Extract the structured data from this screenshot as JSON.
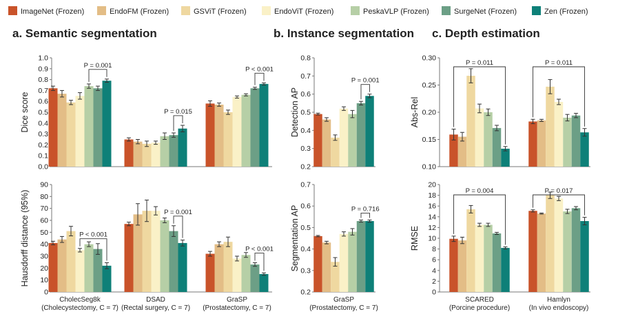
{
  "legend": [
    {
      "name": "ImageNet (Frozen)",
      "color": "#c9532a"
    },
    {
      "name": "EndoFM (Frozen)",
      "color": "#e3bd86"
    },
    {
      "name": "GSViT (Frozen)",
      "color": "#efd8a0"
    },
    {
      "name": "EndoViT (Frozen)",
      "color": "#faf1c7"
    },
    {
      "name": "PeskaVLP (Frozen)",
      "color": "#b6cfa6"
    },
    {
      "name": "SurgeNet (Frozen)",
      "color": "#6c9f86"
    },
    {
      "name": "Zen (Frozen)",
      "color": "#0e8078"
    }
  ],
  "sections": {
    "a": "a.  Semantic segmentation",
    "b": "b.  Instance segmentation",
    "c": "c.  Depth estimation"
  },
  "chart_data": [
    {
      "id": "dice",
      "type": "bar",
      "ylabel": "Dice score",
      "ylim": [
        0,
        1.0
      ],
      "yticks": [
        "0.0",
        "0.1",
        "0.2",
        "0.3",
        "0.4",
        "0.5",
        "0.6",
        "0.7",
        "0.8",
        "0.9",
        "1.0"
      ],
      "groups": [
        {
          "label": "CholecSeg8k",
          "sublabel": "(Cholecystectomy, C = 7)",
          "values": [
            0.72,
            0.67,
            0.59,
            0.65,
            0.74,
            0.72,
            0.79
          ],
          "errors": [
            0.02,
            0.03,
            0.02,
            0.03,
            0.02,
            0.02,
            0.015
          ]
        },
        {
          "label": "DSAD",
          "sublabel": "(Rectal surgery, C = 7)",
          "values": [
            0.25,
            0.23,
            0.21,
            0.22,
            0.28,
            0.29,
            0.35
          ],
          "errors": [
            0.015,
            0.02,
            0.025,
            0.015,
            0.03,
            0.02,
            0.03
          ]
        },
        {
          "label": "GraSP",
          "sublabel": "(Prostatectomy, C = 7)",
          "values": [
            0.58,
            0.57,
            0.5,
            0.64,
            0.66,
            0.72,
            0.76
          ],
          "errors": [
            0.025,
            0.015,
            0.02,
            0.01,
            0.01,
            0.01,
            0.01
          ]
        }
      ],
      "annotations": [
        {
          "group": 0,
          "from": 4,
          "to": 6,
          "text": "P = 0.001"
        },
        {
          "group": 1,
          "from": 5,
          "to": 6,
          "text": "P = 0.015"
        },
        {
          "group": 2,
          "from": 5,
          "to": 6,
          "text": "P < 0.001"
        }
      ]
    },
    {
      "id": "hd95",
      "type": "bar",
      "ylabel": "Hausdorff distance (95%)",
      "ylim": [
        0,
        90
      ],
      "yticks": [
        "0",
        "10",
        "20",
        "30",
        "40",
        "50",
        "60",
        "70",
        "80",
        "90"
      ],
      "groups": [
        {
          "label": "CholecSeg8k",
          "sublabel": "(Cholecystectomy, C = 7)",
          "values": [
            41,
            44,
            51,
            35,
            40,
            36,
            22
          ],
          "errors": [
            1.5,
            2.5,
            4,
            1.5,
            2,
            4.5,
            2.5
          ]
        },
        {
          "label": "DSAD",
          "sublabel": "(Rectal surgery, C = 7)",
          "values": [
            57,
            65,
            68,
            68,
            60,
            51,
            41
          ],
          "errors": [
            1.5,
            9,
            9,
            3.5,
            2,
            4.5,
            2.5
          ]
        },
        {
          "label": "GraSP",
          "sublabel": "(Prostatectomy, C = 7)",
          "values": [
            32,
            40,
            42,
            28,
            31,
            23,
            15
          ],
          "errors": [
            2,
            2,
            4,
            2,
            2,
            1.5,
            1
          ]
        }
      ],
      "annotations": [
        {
          "group": 0,
          "from": 3,
          "to": 6,
          "text": "P < 0.001"
        },
        {
          "group": 1,
          "from": 5,
          "to": 6,
          "text": "P = 0.001"
        },
        {
          "group": 2,
          "from": 5,
          "to": 6,
          "text": "P < 0.001"
        }
      ]
    },
    {
      "id": "detap",
      "type": "bar",
      "ylabel": "Detection AP",
      "ylim": [
        0.2,
        0.8
      ],
      "yticks": [
        "0.2",
        "0.3",
        "0.4",
        "0.5",
        "0.6",
        "0.7",
        "0.8"
      ],
      "groups": [
        {
          "label": "",
          "sublabel": "",
          "values": [
            0.49,
            0.46,
            0.36,
            0.52,
            0.49,
            0.55,
            0.59
          ],
          "errors": [
            0.005,
            0.01,
            0.015,
            0.01,
            0.02,
            0.01,
            0.01
          ]
        }
      ],
      "annotations": [
        {
          "group": 0,
          "from": 5,
          "to": 6,
          "text": "P = 0.001"
        }
      ]
    },
    {
      "id": "segap",
      "type": "bar",
      "ylabel": "Segmentation AP",
      "ylim": [
        0.2,
        0.7
      ],
      "yticks": [
        "0.2",
        "0.3",
        "0.4",
        "0.5",
        "0.6",
        "0.7"
      ],
      "groups": [
        {
          "label": "GraSP",
          "sublabel": "(Prostatectomy, C = 7)",
          "values": [
            0.46,
            0.43,
            0.34,
            0.47,
            0.48,
            0.53,
            0.53
          ],
          "errors": [
            0.003,
            0.006,
            0.02,
            0.01,
            0.015,
            0.005,
            0.005
          ]
        }
      ],
      "annotations": [
        {
          "group": 0,
          "from": 5,
          "to": 6,
          "text": "P = 0.716"
        }
      ]
    },
    {
      "id": "absrel",
      "type": "bar",
      "ylabel": "Abs-Rel",
      "ylim": [
        0.1,
        0.3
      ],
      "yticks": [
        "0.10",
        "0.15",
        "0.20",
        "0.25",
        "0.30"
      ],
      "groups": [
        {
          "label": "SCARED",
          "sublabel": "(Porcine procedure)",
          "values": [
            0.159,
            0.155,
            0.267,
            0.207,
            0.2,
            0.171,
            0.133
          ],
          "errors": [
            0.01,
            0.008,
            0.013,
            0.008,
            0.006,
            0.005,
            0.004
          ]
        },
        {
          "label": "Hamlyn",
          "sublabel": "(In vivo endoscopy)",
          "values": [
            0.183,
            0.185,
            0.247,
            0.219,
            0.19,
            0.194,
            0.163
          ],
          "errors": [
            0.004,
            0.002,
            0.013,
            0.005,
            0.006,
            0.004,
            0.007
          ]
        }
      ],
      "annotations": [
        {
          "group": 0,
          "from": 0,
          "to": 6,
          "text": "P = 0.011"
        },
        {
          "group": 1,
          "from": 0,
          "to": 6,
          "text": "P = 0.011"
        }
      ]
    },
    {
      "id": "rmse",
      "type": "bar",
      "ylabel": "RMSE",
      "ylim": [
        0,
        20
      ],
      "yticks": [
        "0",
        "2",
        "4",
        "6",
        "8",
        "10",
        "12",
        "14",
        "16",
        "18",
        "20"
      ],
      "groups": [
        {
          "label": "SCARED",
          "sublabel": "(Porcine procedure)",
          "values": [
            9.9,
            9.6,
            15.4,
            12.5,
            12.5,
            10.9,
            8.2
          ],
          "errors": [
            0.5,
            0.6,
            0.7,
            0.3,
            0.3,
            0.2,
            0.2
          ]
        },
        {
          "label": "Hamlyn",
          "sublabel": "(In vivo endoscopy)",
          "values": [
            15.1,
            14.6,
            18.0,
            17.4,
            15.0,
            15.6,
            13.2
          ],
          "errors": [
            0.2,
            0.1,
            0.6,
            0.4,
            0.4,
            0.3,
            0.7
          ]
        }
      ],
      "annotations": [
        {
          "group": 0,
          "from": 0,
          "to": 6,
          "text": "P = 0.004"
        },
        {
          "group": 1,
          "from": 0,
          "to": 6,
          "text": "P = 0.017"
        }
      ]
    }
  ]
}
